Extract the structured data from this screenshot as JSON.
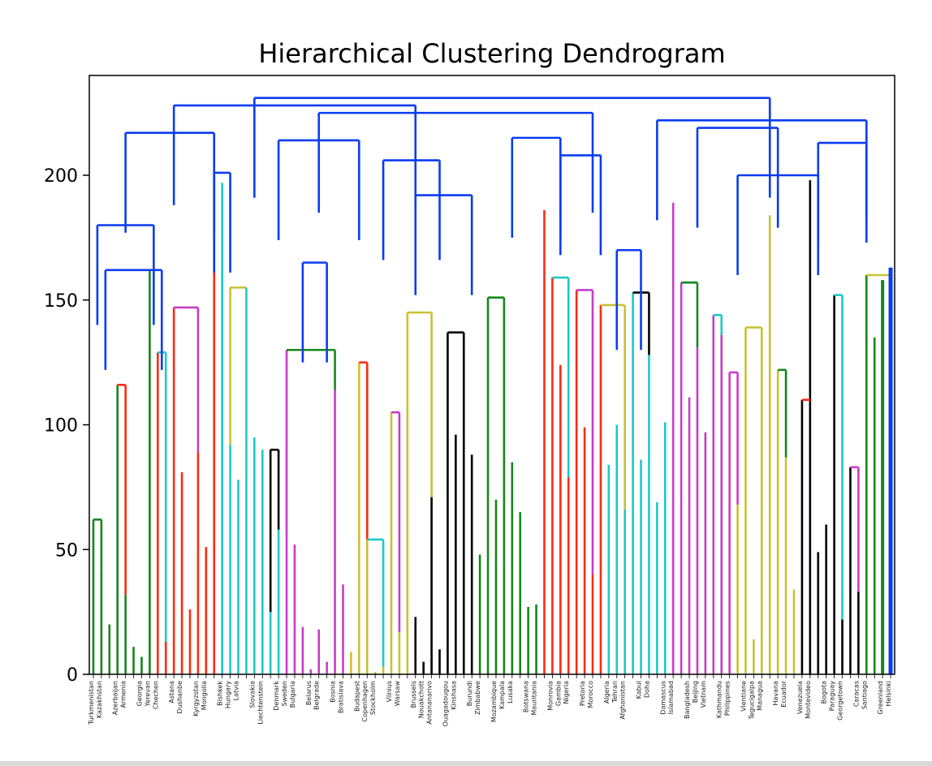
{
  "chart_data": {
    "type": "dendrogram",
    "title": "Hierarchical Clustering Dendrogram",
    "xlabel": "",
    "ylabel": "",
    "ylim": [
      0,
      240
    ],
    "yticks": [
      0,
      50,
      100,
      150,
      200
    ],
    "grid": false,
    "colors": {
      "link": "#0a3cf0",
      "green": "#15871a",
      "red": "#ff2a10",
      "cyan": "#1ec8c8",
      "magenta": "#c83cc8",
      "olive": "#c8c232",
      "black": "#000000",
      "blue": "#0a3cf0"
    },
    "leaf_labels_visible": [
      "Turkmenistan",
      "Kazakhstan",
      "Azerbaijan",
      "Armenia",
      "Georgia",
      "Yerevan",
      "Chechen",
      "Astana",
      "Dushanbe",
      "Kyrgyzstan",
      "Mongolia",
      "Bishkek",
      "Hungary",
      "Latvia",
      "Slovakia",
      "Liechtenstein",
      "Denmark",
      "Sweden",
      "Bulgaria",
      "Belarus",
      "Belgrade",
      "Bosnia",
      "Bratislava",
      "Budapest",
      "Copenhagen",
      "Stockholm",
      "Vilnius",
      "Warsaw",
      "Brussels",
      "Nouakchott",
      "Antananarivo",
      "Ouagadougou",
      "Kinshasa",
      "Burundi",
      "Zimbabwe",
      "Mozambique",
      "Kampala",
      "Lusaka",
      "Botswana",
      "Mauritania",
      "Monrovia",
      "Gambia",
      "Nigeria",
      "Pretoria",
      "Morocco",
      "Algeria",
      "Tehran",
      "Afghanistan",
      "Kabul",
      "Doha",
      "Damascus",
      "Islamabad",
      "Bangladesh",
      "Beijing",
      "Vietnam",
      "Kathmandu",
      "Philippines",
      "Vientiane",
      "Tegucigalpa",
      "Managua",
      "Havana",
      "Ecuador",
      "Venezuela",
      "Montevideo",
      "Bogota",
      "Paraguay",
      "Georgetown",
      "Caracas",
      "Santiago",
      "Greenland",
      "Helsinki"
    ],
    "leaf_count": 100,
    "leaf_heights": [
      62,
      42,
      20,
      116,
      32,
      11,
      7,
      162,
      129,
      13,
      147,
      81,
      26,
      89,
      51,
      201,
      197,
      92,
      78,
      155,
      95,
      90,
      25,
      58,
      130,
      52,
      19,
      2,
      18,
      5,
      114,
      36,
      9,
      125,
      54,
      1,
      3,
      105,
      17,
      145,
      23,
      5,
      71,
      10,
      137,
      96,
      131,
      88,
      48,
      151,
      70,
      44,
      85,
      65,
      27,
      28,
      186,
      159,
      124,
      79,
      154,
      99,
      40,
      148,
      84,
      100,
      66,
      153,
      86,
      128,
      69,
      101,
      189,
      157,
      111,
      131,
      97,
      144,
      136,
      121,
      68,
      139,
      14,
      74,
      184,
      122,
      87,
      34,
      110,
      198,
      49,
      60,
      152,
      22,
      83,
      33,
      160,
      135,
      41,
      146
    ],
    "merges": [
      {
        "x1": 0,
        "x2": 1,
        "h": 62,
        "c": "green"
      },
      {
        "x1": 3,
        "x2": 4,
        "h": 116,
        "c": "red"
      },
      {
        "x1": 8,
        "x2": 9,
        "h": 129,
        "c": "cyan"
      },
      {
        "x1": 10,
        "x2": 13,
        "h": 147,
        "c": "magenta"
      },
      {
        "x1": 17,
        "x2": 19,
        "h": 155,
        "c": "olive"
      },
      {
        "x1": 22,
        "x2": 23,
        "h": 90,
        "c": "black"
      },
      {
        "x1": 24,
        "x2": 30,
        "h": 130,
        "c": "green"
      },
      {
        "x1": 33,
        "x2": 34,
        "h": 125,
        "c": "red"
      },
      {
        "x1": 34,
        "x2": 36,
        "h": 54,
        "c": "cyan"
      },
      {
        "x1": 37,
        "x2": 38,
        "h": 105,
        "c": "magenta"
      },
      {
        "x1": 39,
        "x2": 42,
        "h": 145,
        "c": "olive"
      },
      {
        "x1": 44,
        "x2": 46,
        "h": 137,
        "c": "black"
      },
      {
        "x1": 49,
        "x2": 51,
        "h": 151,
        "c": "green"
      },
      {
        "x1": 57,
        "x2": 59,
        "h": 159,
        "c": "cyan"
      },
      {
        "x1": 60,
        "x2": 62,
        "h": 154,
        "c": "magenta"
      },
      {
        "x1": 63,
        "x2": 66,
        "h": 148,
        "c": "olive"
      },
      {
        "x1": 67,
        "x2": 69,
        "h": 153,
        "c": "black"
      },
      {
        "x1": 73,
        "x2": 75,
        "h": 157,
        "c": "green"
      },
      {
        "x1": 77,
        "x2": 78,
        "h": 144,
        "c": "cyan"
      },
      {
        "x1": 79,
        "x2": 80,
        "h": 121,
        "c": "magenta"
      },
      {
        "x1": 81,
        "x2": 83,
        "h": 139,
        "c": "olive"
      },
      {
        "x1": 85,
        "x2": 86,
        "h": 122,
        "c": "green"
      },
      {
        "x1": 88,
        "x2": 89,
        "h": 110,
        "c": "red"
      },
      {
        "x1": 92,
        "x2": 93,
        "h": 152,
        "c": "cyan"
      },
      {
        "x1": 94,
        "x2": 95,
        "h": 83,
        "c": "magenta"
      },
      {
        "x1": 96,
        "x2": 99,
        "h": 160,
        "c": "olive"
      }
    ],
    "top_links": [
      {
        "x1": 0.5,
        "x2": 7.5,
        "h": 180
      },
      {
        "x1": 1.5,
        "x2": 8.5,
        "h": 162
      },
      {
        "x1": 4,
        "x2": 15,
        "h": 217
      },
      {
        "x1": 15,
        "x2": 17,
        "h": 201
      },
      {
        "x1": 23,
        "x2": 33,
        "h": 214
      },
      {
        "x1": 26,
        "x2": 29,
        "h": 165
      },
      {
        "x1": 36,
        "x2": 43,
        "h": 206
      },
      {
        "x1": 40,
        "x2": 47,
        "h": 192
      },
      {
        "x1": 52,
        "x2": 58,
        "h": 215
      },
      {
        "x1": 58,
        "x2": 63,
        "h": 208
      },
      {
        "x1": 65,
        "x2": 68,
        "h": 170
      },
      {
        "x1": 75,
        "x2": 85,
        "h": 219
      },
      {
        "x1": 80,
        "x2": 90,
        "h": 200
      },
      {
        "x1": 90,
        "x2": 96,
        "h": 213
      },
      {
        "x1": 10,
        "x2": 40,
        "h": 228
      },
      {
        "x1": 28,
        "x2": 62,
        "h": 225
      },
      {
        "x1": 70,
        "x2": 96,
        "h": 222
      },
      {
        "x1": 20,
        "x2": 84,
        "h": 231
      }
    ]
  }
}
